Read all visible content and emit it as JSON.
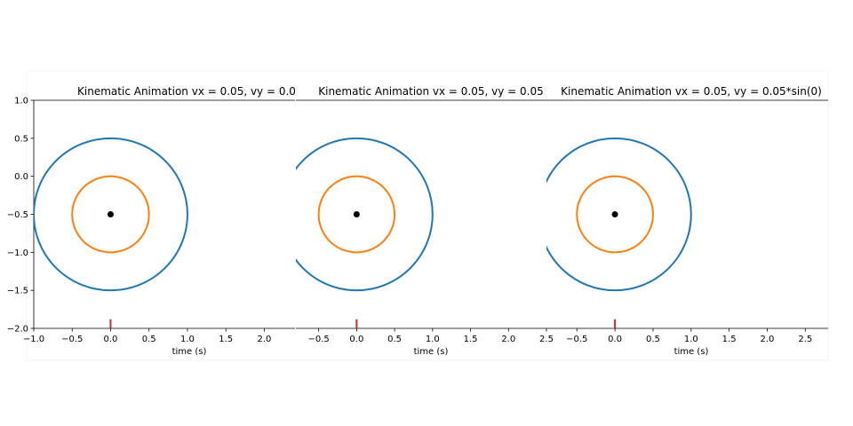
{
  "chart_data": [
    {
      "type": "line",
      "title": "Kinematic Animation vx = 0.05, vy = 0.0",
      "xlabel": "time (s)",
      "ylabel": "",
      "xlim": [
        -1.0,
        2.4
      ],
      "ylim": [
        -2.0,
        1.0
      ],
      "xticks": [
        "−1.0",
        "−0.5",
        "0.0",
        "0.5",
        "1.0",
        "1.5",
        "2.0"
      ],
      "yticks": [
        "1.0",
        "0.5",
        "0.0",
        "−0.5",
        "−1.0",
        "−1.5",
        "−2.0"
      ],
      "grid": false,
      "series": [
        {
          "shape": "circle",
          "center": [
            0.0,
            -0.5
          ],
          "radius": 1.0,
          "color": "#1f77b4"
        },
        {
          "shape": "circle",
          "center": [
            0.0,
            -0.5
          ],
          "radius": 0.5,
          "color": "#ff7f0e"
        },
        {
          "shape": "point",
          "x": 0.0,
          "y": -0.5,
          "color": "#000000"
        },
        {
          "shape": "marker",
          "x": 0.0,
          "y_range": [
            -2.0,
            -1.88
          ],
          "color": "#d62728"
        }
      ]
    },
    {
      "type": "line",
      "title": "Kinematic Animation vx = 0.05, vy = 0.05",
      "xlabel": "time (s)",
      "ylabel": "",
      "xlim": [
        -0.8,
        2.5
      ],
      "ylim": [
        -2.0,
        1.0
      ],
      "xticks": [
        "−0.5",
        "0.0",
        "0.5",
        "1.0",
        "1.5",
        "2.0",
        "2.5"
      ],
      "yticks": [],
      "grid": false,
      "series": [
        {
          "shape": "circle",
          "center": [
            0.0,
            -0.5
          ],
          "radius": 1.0,
          "color": "#1f77b4"
        },
        {
          "shape": "circle",
          "center": [
            0.0,
            -0.5
          ],
          "radius": 0.5,
          "color": "#ff7f0e"
        },
        {
          "shape": "point",
          "x": 0.0,
          "y": -0.5,
          "color": "#000000"
        },
        {
          "shape": "marker",
          "x": 0.0,
          "y_range": [
            -2.0,
            -1.88
          ],
          "color": "#d62728"
        }
      ]
    },
    {
      "type": "line",
      "title": "Kinematic Animation vx = 0.05, vy = 0.05*sin(0)",
      "xlabel": "time (s)",
      "ylabel": "",
      "xlim": [
        -0.9,
        2.8
      ],
      "ylim": [
        -2.0,
        1.0
      ],
      "xticks": [
        "−0.5",
        "0.0",
        "0.5",
        "1.0",
        "1.5",
        "2.0",
        "2.5"
      ],
      "yticks": [],
      "grid": false,
      "series": [
        {
          "shape": "circle",
          "center": [
            0.0,
            -0.5
          ],
          "radius": 1.0,
          "color": "#1f77b4"
        },
        {
          "shape": "circle",
          "center": [
            0.0,
            -0.5
          ],
          "radius": 0.5,
          "color": "#ff7f0e"
        },
        {
          "shape": "point",
          "x": 0.0,
          "y": -0.5,
          "color": "#000000"
        },
        {
          "shape": "marker",
          "x": 0.0,
          "y_range": [
            -2.0,
            -1.88
          ],
          "color": "#d62728"
        }
      ]
    }
  ]
}
